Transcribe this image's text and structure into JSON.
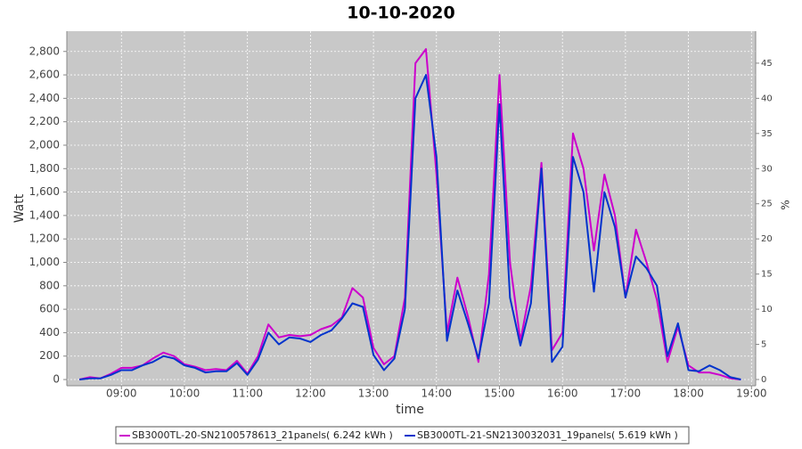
{
  "chart_data": {
    "type": "line",
    "title": "10-10-2020",
    "xlabel": "time",
    "ylabel": "Watt",
    "y2label": "%",
    "x": [
      "08:20",
      "08:30",
      "08:40",
      "08:50",
      "09:00",
      "09:10",
      "09:20",
      "09:30",
      "09:40",
      "09:50",
      "10:00",
      "10:10",
      "10:20",
      "10:30",
      "10:40",
      "10:50",
      "11:00",
      "11:10",
      "11:20",
      "11:30",
      "11:40",
      "11:50",
      "12:00",
      "12:10",
      "12:20",
      "12:30",
      "12:40",
      "12:50",
      "13:00",
      "13:10",
      "13:20",
      "13:30",
      "13:40",
      "13:50",
      "14:00",
      "14:10",
      "14:20",
      "14:30",
      "14:40",
      "14:50",
      "15:00",
      "15:10",
      "15:20",
      "15:30",
      "15:40",
      "15:50",
      "16:00",
      "16:10",
      "16:20",
      "16:30",
      "16:40",
      "16:50",
      "17:00",
      "17:10",
      "17:20",
      "17:30",
      "17:40",
      "17:50",
      "18:00",
      "18:10",
      "18:20",
      "18:30",
      "18:40",
      "18:50"
    ],
    "series": [
      {
        "name": "SB3000TL-20-SN2100578613_21panels( 6.242 kWh )",
        "color": "#cc00cc",
        "values": [
          0,
          20,
          10,
          50,
          100,
          100,
          120,
          180,
          230,
          200,
          130,
          110,
          80,
          90,
          80,
          160,
          50,
          200,
          470,
          360,
          380,
          370,
          380,
          430,
          460,
          530,
          780,
          700,
          270,
          130,
          200,
          700,
          2700,
          2820,
          1750,
          400,
          870,
          540,
          150,
          900,
          2600,
          1000,
          330,
          800,
          1850,
          250,
          400,
          2100,
          1800,
          1100,
          1750,
          1400,
          700,
          1280,
          1000,
          680,
          150,
          450,
          120,
          60,
          60,
          40,
          10,
          0
        ]
      },
      {
        "name": "SB3000TL-21-SN2130032031_19panels( 5.619 kWh )",
        "color": "#0033cc",
        "values": [
          0,
          10,
          10,
          40,
          80,
          80,
          120,
          150,
          200,
          180,
          120,
          100,
          60,
          70,
          70,
          140,
          40,
          170,
          400,
          300,
          360,
          350,
          320,
          380,
          420,
          520,
          650,
          620,
          210,
          80,
          180,
          600,
          2400,
          2600,
          1900,
          330,
          760,
          480,
          180,
          650,
          2350,
          700,
          290,
          650,
          1800,
          150,
          280,
          1900,
          1600,
          750,
          1600,
          1300,
          700,
          1050,
          950,
          800,
          200,
          480,
          80,
          70,
          120,
          80,
          20,
          0
        ]
      }
    ],
    "xlim": [
      "08:08",
      "19:04"
    ],
    "xticks": [
      "09:00",
      "10:00",
      "11:00",
      "12:00",
      "13:00",
      "14:00",
      "15:00",
      "16:00",
      "17:00",
      "18:00",
      "19:00"
    ],
    "ylim": [
      -53,
      2973
    ],
    "yticks": [
      0,
      200,
      400,
      600,
      800,
      {
        "value": 1000,
        "label": "1,000"
      },
      {
        "value": 1200,
        "label": "1,200"
      },
      {
        "value": 1400,
        "label": "1,400"
      },
      {
        "value": 1600,
        "label": "1,600"
      },
      {
        "value": 1800,
        "label": "1,800"
      },
      {
        "value": 2000,
        "label": "2,000"
      },
      {
        "value": 2200,
        "label": "2,200"
      },
      {
        "value": 2400,
        "label": "2,400"
      },
      {
        "value": 2600,
        "label": "2,600"
      },
      {
        "value": 2800,
        "label": "2,800"
      }
    ],
    "y2lim": [
      -0.89,
      49.55
    ],
    "y2ticks": [
      0,
      5,
      10,
      15,
      20,
      25,
      30,
      35,
      40,
      45
    ],
    "grid": true
  }
}
